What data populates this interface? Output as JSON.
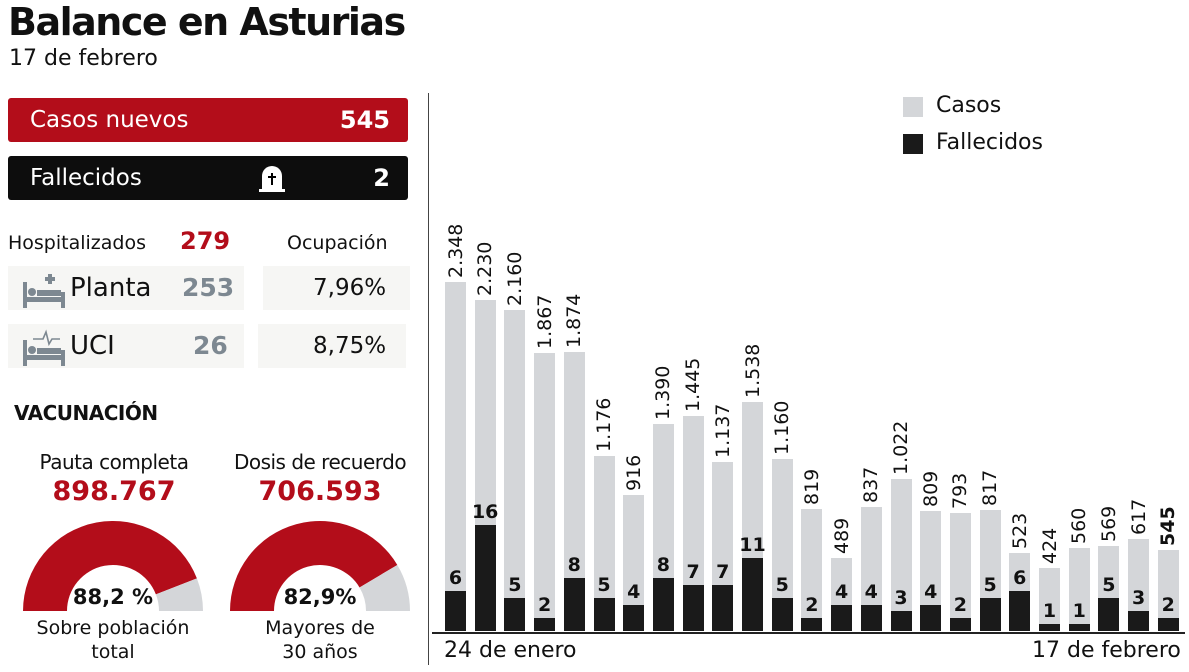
{
  "title": "Balance en Asturias",
  "subtitle": "17 de febrero",
  "casos_nuevos": {
    "label": "Casos nuevos",
    "value": "545",
    "color": "#b30d1a"
  },
  "fallecidos": {
    "label": "Fallecidos",
    "value": "2",
    "icon": "tombstone-icon"
  },
  "hospital": {
    "label": "Hospitalizados",
    "total": "279",
    "ocupacion_label": "Ocupación",
    "rows": [
      {
        "label": "Planta",
        "value": "253",
        "ocupacion": "7,96%",
        "icon": "bed-plus-icon"
      },
      {
        "label": "UCI",
        "value": "26",
        "ocupacion": "8,75%",
        "icon": "bed-heartbeat-icon"
      }
    ]
  },
  "vacunacion": {
    "heading": "VACUNACIÓN",
    "items": [
      {
        "title": "Pauta completa",
        "value": "898.767",
        "percent_label": "88,2 %",
        "percent": 88.2,
        "caption1": "Sobre población",
        "caption2": "total"
      },
      {
        "title": "Dosis de recuerdo",
        "value": "706.593",
        "percent_label": "82,9%",
        "percent": 82.9,
        "caption1": "Mayores de",
        "caption2": "30 años"
      }
    ]
  },
  "chart_data": {
    "type": "bar",
    "legend": [
      "Casos",
      "Fallecidos"
    ],
    "legend_position": "top-right",
    "colors": {
      "casos": "#d4d6d9",
      "fallecidos": "#1a1a1a"
    },
    "x_start_label": "24 de enero",
    "x_end_label": "17 de febrero",
    "series": [
      {
        "name": "Casos",
        "values": [
          2348,
          2230,
          2160,
          1867,
          1874,
          1176,
          916,
          1390,
          1445,
          1137,
          1538,
          1160,
          819,
          489,
          837,
          1022,
          809,
          793,
          817,
          523,
          424,
          560,
          569,
          617,
          545
        ],
        "labels": [
          "2.348",
          "2.230",
          "2.160",
          "1.867",
          "1.874",
          "1.176",
          "916",
          "1.390",
          "1.445",
          "1.137",
          "1.538",
          "1.160",
          "819",
          "489",
          "837",
          "1.022",
          "809",
          "793",
          "817",
          "523",
          "424",
          "560",
          "569",
          "617",
          "545"
        ]
      },
      {
        "name": "Fallecidos",
        "values": [
          6,
          16,
          5,
          2,
          8,
          5,
          4,
          8,
          7,
          7,
          11,
          5,
          2,
          4,
          4,
          3,
          4,
          2,
          5,
          6,
          1,
          1,
          5,
          3,
          2
        ]
      }
    ]
  }
}
